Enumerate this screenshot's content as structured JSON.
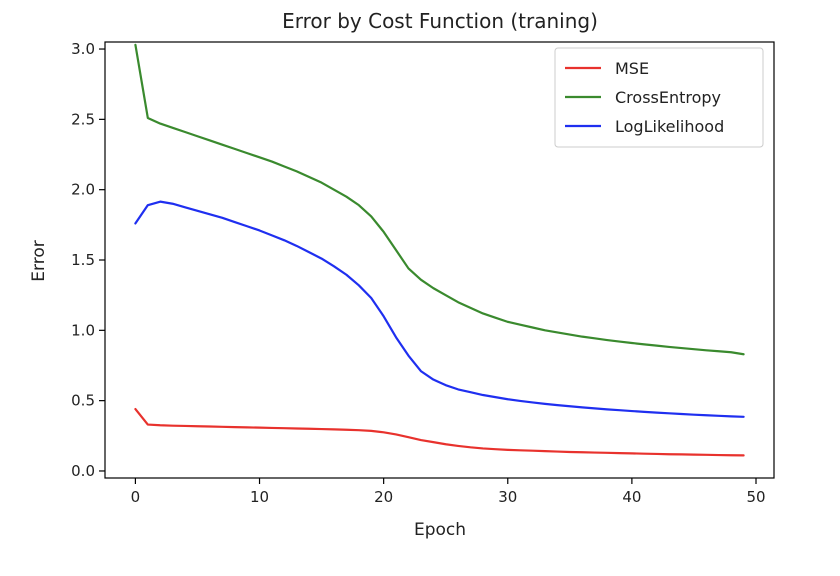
{
  "chart_data": {
    "type": "line",
    "title": "Error by Cost Function (traning)",
    "xlabel": "Epoch",
    "ylabel": "Error",
    "xlim": [
      -2.45,
      51.45
    ],
    "ylim": [
      -0.05,
      3.05
    ],
    "xticks": [
      0,
      10,
      20,
      30,
      40,
      50
    ],
    "yticks": [
      0.0,
      0.5,
      1.0,
      1.5,
      2.0,
      2.5,
      3.0
    ],
    "ytick_labels": [
      "0.0",
      "0.5",
      "1.0",
      "1.5",
      "2.0",
      "2.5",
      "3.0"
    ],
    "grid": false,
    "legend_position": "top-right",
    "x": [
      0,
      1,
      2,
      3,
      4,
      5,
      6,
      7,
      8,
      9,
      10,
      11,
      12,
      13,
      14,
      15,
      16,
      17,
      18,
      19,
      20,
      21,
      22,
      23,
      24,
      25,
      26,
      27,
      28,
      29,
      30,
      31,
      32,
      33,
      34,
      35,
      36,
      37,
      38,
      39,
      40,
      41,
      42,
      43,
      44,
      45,
      46,
      47,
      48,
      49
    ],
    "series": [
      {
        "name": "MSE",
        "color": "#e8322d",
        "values": [
          0.44,
          0.33,
          0.325,
          0.322,
          0.32,
          0.318,
          0.316,
          0.314,
          0.312,
          0.31,
          0.308,
          0.306,
          0.304,
          0.302,
          0.3,
          0.298,
          0.296,
          0.293,
          0.29,
          0.285,
          0.275,
          0.26,
          0.24,
          0.22,
          0.205,
          0.19,
          0.178,
          0.168,
          0.16,
          0.155,
          0.15,
          0.147,
          0.144,
          0.141,
          0.138,
          0.135,
          0.133,
          0.131,
          0.129,
          0.127,
          0.125,
          0.123,
          0.121,
          0.119,
          0.118,
          0.116,
          0.115,
          0.113,
          0.112,
          0.111
        ]
      },
      {
        "name": "CrossEntropy",
        "color": "#3a8a2e",
        "values": [
          3.03,
          2.51,
          2.47,
          2.44,
          2.41,
          2.38,
          2.35,
          2.32,
          2.29,
          2.26,
          2.23,
          2.2,
          2.165,
          2.13,
          2.09,
          2.05,
          2.0,
          1.95,
          1.89,
          1.81,
          1.7,
          1.57,
          1.44,
          1.36,
          1.3,
          1.25,
          1.2,
          1.16,
          1.12,
          1.09,
          1.06,
          1.04,
          1.02,
          1.0,
          0.985,
          0.97,
          0.955,
          0.943,
          0.931,
          0.92,
          0.91,
          0.9,
          0.891,
          0.882,
          0.874,
          0.866,
          0.858,
          0.851,
          0.844,
          0.83
        ]
      },
      {
        "name": "LogLikelihood",
        "color": "#1f2ff0",
        "values": [
          1.76,
          1.89,
          1.915,
          1.9,
          1.875,
          1.85,
          1.825,
          1.8,
          1.77,
          1.74,
          1.71,
          1.675,
          1.64,
          1.6,
          1.555,
          1.51,
          1.455,
          1.395,
          1.32,
          1.23,
          1.1,
          0.95,
          0.82,
          0.71,
          0.65,
          0.61,
          0.58,
          0.56,
          0.54,
          0.525,
          0.51,
          0.498,
          0.487,
          0.477,
          0.468,
          0.46,
          0.452,
          0.445,
          0.438,
          0.432,
          0.426,
          0.42,
          0.415,
          0.41,
          0.405,
          0.4,
          0.396,
          0.392,
          0.388,
          0.385
        ]
      }
    ]
  }
}
